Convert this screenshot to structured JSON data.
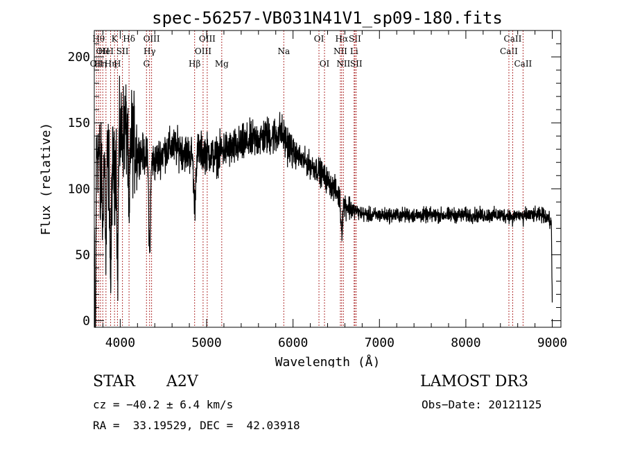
{
  "chart_data": {
    "type": "line",
    "title": "spec-56257-VB031N41V1_sp09-180.fits",
    "xlabel": "Wavelength (Å)",
    "ylabel": "Flux (relative)",
    "xlim": [
      3700,
      9100
    ],
    "ylim": [
      -5,
      220
    ],
    "xticks": [
      4000,
      5000,
      6000,
      7000,
      8000,
      9000
    ],
    "xtick_labels": [
      "4000",
      "5000",
      "6000",
      "7000",
      "8000",
      "9000"
    ],
    "yticks": [
      0,
      50,
      100,
      150,
      200
    ],
    "ytick_labels": [
      "0",
      "50",
      "100",
      "150",
      "200"
    ],
    "continuum": [
      [
        3700,
        40
      ],
      [
        3730,
        135
      ],
      [
        3780,
        115
      ],
      [
        3850,
        120
      ],
      [
        3900,
        112
      ],
      [
        3950,
        128
      ],
      [
        4000,
        140
      ],
      [
        4050,
        145
      ],
      [
        4100,
        148
      ],
      [
        4150,
        135
      ],
      [
        4200,
        128
      ],
      [
        4300,
        125
      ],
      [
        4400,
        120
      ],
      [
        4500,
        128
      ],
      [
        4600,
        132
      ],
      [
        4700,
        130
      ],
      [
        4800,
        126
      ],
      [
        4900,
        128
      ],
      [
        5000,
        128
      ],
      [
        5100,
        124
      ],
      [
        5200,
        130
      ],
      [
        5300,
        130
      ],
      [
        5400,
        133
      ],
      [
        5500,
        136
      ],
      [
        5600,
        138
      ],
      [
        5700,
        140
      ],
      [
        5800,
        140
      ],
      [
        5850,
        144
      ],
      [
        5900,
        138
      ],
      [
        6000,
        128
      ],
      [
        6100,
        122
      ],
      [
        6200,
        118
      ],
      [
        6300,
        114
      ],
      [
        6400,
        106
      ],
      [
        6500,
        98
      ],
      [
        6550,
        92
      ],
      [
        6600,
        88
      ],
      [
        6700,
        84
      ],
      [
        6800,
        81
      ],
      [
        6900,
        80
      ],
      [
        7000,
        80
      ],
      [
        7500,
        80
      ],
      [
        8000,
        80
      ],
      [
        8500,
        80
      ],
      [
        8800,
        80
      ],
      [
        8900,
        80
      ],
      [
        8950,
        78
      ],
      [
        9000,
        72
      ]
    ],
    "absorption": [
      {
        "w": 3712,
        "depth": 125,
        "width": 6
      },
      {
        "w": 3771,
        "depth": 40,
        "width": 5
      },
      {
        "w": 3798,
        "depth": 55,
        "width": 6
      },
      {
        "w": 3835,
        "depth": 75,
        "width": 8
      },
      {
        "w": 3889,
        "depth": 85,
        "width": 10
      },
      {
        "w": 3934,
        "depth": 30,
        "width": 5
      },
      {
        "w": 3970,
        "depth": 95,
        "width": 10
      },
      {
        "w": 4102,
        "depth": 80,
        "width": 12
      },
      {
        "w": 4340,
        "depth": 70,
        "width": 14
      },
      {
        "w": 4861,
        "depth": 40,
        "width": 16
      },
      {
        "w": 6563,
        "depth": 22,
        "width": 14
      },
      {
        "w": 8542,
        "depth": 6,
        "width": 8
      },
      {
        "w": 8662,
        "depth": 6,
        "width": 8
      }
    ],
    "lines": [
      {
        "w": 3726,
        "label": "OII",
        "row": 2
      },
      {
        "w": 3750,
        "label": "Hθ",
        "row": 0
      },
      {
        "w": 3771,
        "label": "Hη",
        "row": 2
      },
      {
        "w": 3798,
        "label": "OII",
        "row": 1
      },
      {
        "w": 3835,
        "label": "HeI",
        "row": 1
      },
      {
        "w": 3889,
        "label": "Hη",
        "row": 2
      },
      {
        "w": 3934,
        "label": "K",
        "row": 0
      },
      {
        "w": 3968,
        "label": "H",
        "row": 2
      },
      {
        "w": 4026,
        "label": "SII",
        "row": 1
      },
      {
        "w": 4102,
        "label": "Hδ",
        "row": 0
      },
      {
        "w": 4304,
        "label": "G",
        "row": 2
      },
      {
        "w": 4340,
        "label": "Hγ",
        "row": 1
      },
      {
        "w": 4363,
        "label": "OIII",
        "row": 0
      },
      {
        "w": 4861,
        "label": "Hβ",
        "row": 2
      },
      {
        "w": 4959,
        "label": "OIII",
        "row": 1
      },
      {
        "w": 5007,
        "label": "OIII",
        "row": 0
      },
      {
        "w": 5175,
        "label": "Mg",
        "row": 2
      },
      {
        "w": 5893,
        "label": "Na",
        "row": 1
      },
      {
        "w": 6300,
        "label": "OI",
        "row": 0
      },
      {
        "w": 6364,
        "label": "OI",
        "row": 2
      },
      {
        "w": 6548,
        "label": "NII",
        "row": 1
      },
      {
        "w": 6563,
        "label": "Hα",
        "row": 0
      },
      {
        "w": 6583,
        "label": "NII",
        "row": 2
      },
      {
        "w": 6707,
        "label": "Li",
        "row": 1
      },
      {
        "w": 6716,
        "label": "SII",
        "row": 0
      },
      {
        "w": 6731,
        "label": "SII",
        "row": 2
      },
      {
        "w": 8498,
        "label": "CaII",
        "row": 1
      },
      {
        "w": 8542,
        "label": "CaII",
        "row": 0
      },
      {
        "w": 8662,
        "label": "CaII",
        "row": 2
      }
    ]
  },
  "info": {
    "class": "STAR",
    "subclass": "A2V",
    "survey": "LAMOST DR3",
    "cz": "cz = −40.2 ± 6.4 km/s",
    "obs_date": "Obs−Date: 20121125",
    "coords": "RA =  33.19529, DEC =  42.03918"
  },
  "colors": {
    "spectrum": "#000000",
    "line_marker": "#b03030",
    "axes": "#000000"
  }
}
